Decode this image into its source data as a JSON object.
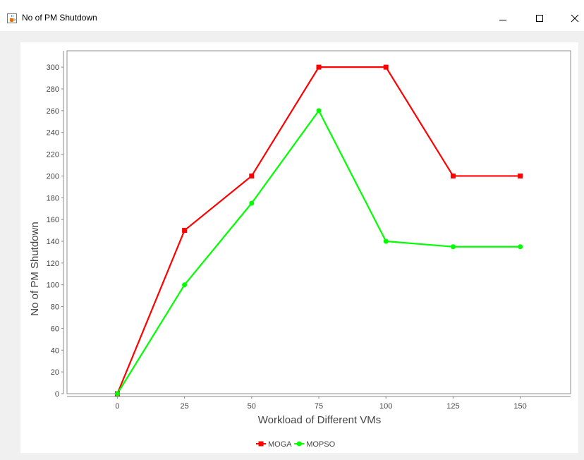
{
  "window": {
    "title": "No of PM Shutdown",
    "app_icon": "java-cup-icon",
    "controls": {
      "minimize_icon": "minimize-icon",
      "maximize_icon": "maximize-icon",
      "close_icon": "close-icon"
    }
  },
  "chart_data": {
    "type": "line",
    "title": "",
    "xlabel": "Workload of Different VMs",
    "ylabel": "No of PM Shutdown",
    "x": [
      0,
      25,
      50,
      75,
      100,
      125,
      150
    ],
    "x_ticks": [
      "0",
      "25",
      "50",
      "75",
      "100",
      "125",
      "150"
    ],
    "xlim": [
      -18.75,
      168.75
    ],
    "ylim": [
      0,
      315
    ],
    "y_ticks": [
      "0",
      "20",
      "40",
      "60",
      "80",
      "100",
      "120",
      "140",
      "160",
      "180",
      "200",
      "220",
      "240",
      "260",
      "280",
      "300"
    ],
    "grid": false,
    "legend_position": "bottom",
    "series": [
      {
        "name": "MOGA",
        "color": "#ff0000",
        "marker": "square",
        "values": [
          0,
          150,
          200,
          300,
          300,
          200,
          200
        ]
      },
      {
        "name": "MOPSO",
        "color": "#00ff00",
        "marker": "circle",
        "values": [
          0,
          100,
          175,
          260,
          140,
          135,
          135
        ]
      }
    ]
  }
}
